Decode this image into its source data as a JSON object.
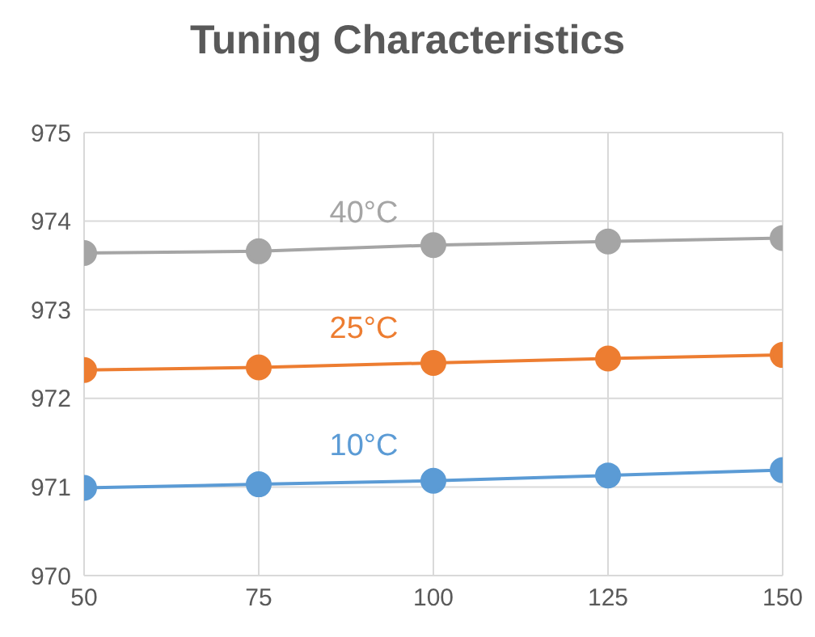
{
  "chart_data": {
    "type": "line",
    "title": "Tuning Characteristics",
    "x": [
      50,
      75,
      100,
      125,
      150
    ],
    "xlim": [
      50,
      150
    ],
    "xticks": [
      50,
      75,
      100,
      125,
      150
    ],
    "ylim": [
      970,
      975
    ],
    "yticks": [
      970,
      971,
      972,
      973,
      974,
      975
    ],
    "grid": true,
    "legend": false,
    "marker": "circle",
    "series": [
      {
        "name": "40°C",
        "color": "#a5a5a5",
        "values": [
          973.64,
          973.66,
          973.73,
          973.77,
          973.81
        ]
      },
      {
        "name": "25°C",
        "color": "#ed7d31",
        "values": [
          972.32,
          972.35,
          972.4,
          972.45,
          972.49
        ]
      },
      {
        "name": "10°C",
        "color": "#5b9bd5",
        "values": [
          970.99,
          971.03,
          971.07,
          971.13,
          971.19
        ]
      }
    ]
  }
}
